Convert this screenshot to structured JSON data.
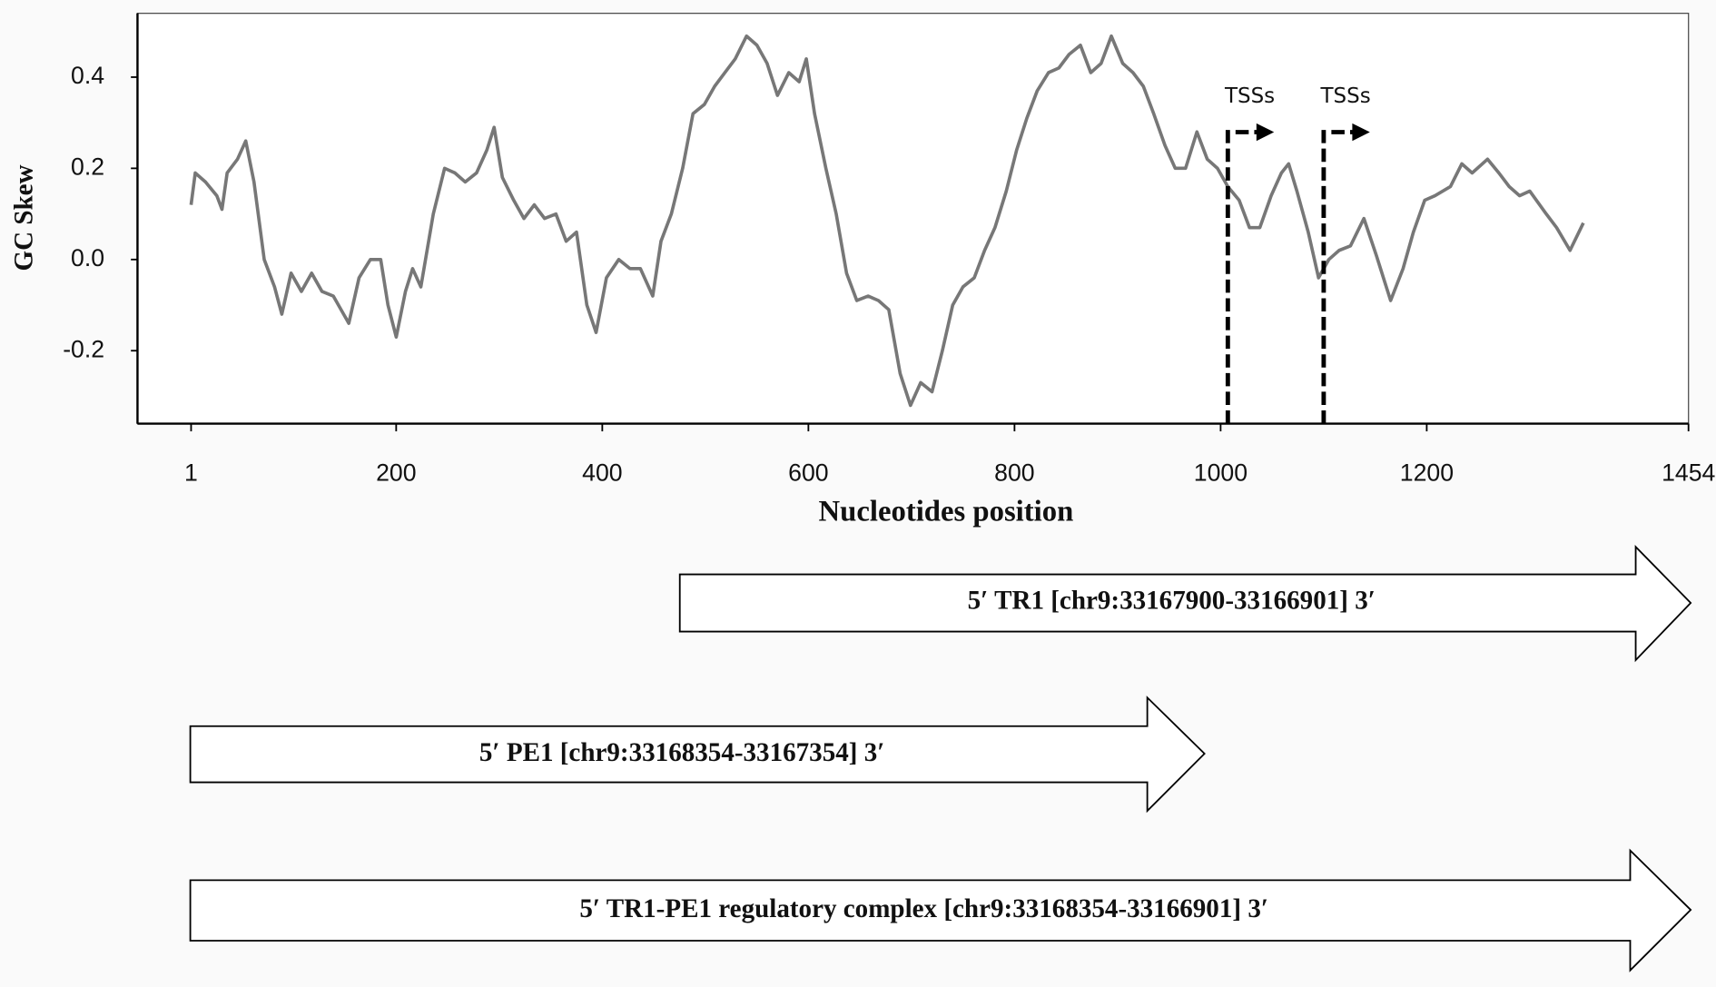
{
  "chart_data": {
    "type": "line",
    "xlabel": "Nucleotides position",
    "ylabel": "GC Skew",
    "xlim": [
      -51,
      1454
    ],
    "xticks": [
      1,
      200,
      400,
      600,
      800,
      1000,
      1200,
      1454
    ],
    "ylim": [
      -0.36,
      0.54
    ],
    "yticks": [
      0.4,
      0.2,
      {
        "value": 0,
        "label": "0.0"
      },
      -0.2
    ],
    "grid": false,
    "series": [
      {
        "color": "#777777",
        "x": [
          1,
          5,
          15,
          26,
          31,
          36,
          46,
          54,
          62,
          72,
          82,
          89,
          98,
          108,
          118,
          128,
          139,
          154,
          164,
          175,
          185,
          192,
          200,
          209,
          216,
          224,
          236,
          247,
          257,
          267,
          278,
          288,
          295,
          303,
          314,
          324,
          334,
          344,
          355,
          365,
          375,
          385,
          394,
          404,
          416,
          427,
          437,
          449,
          457,
          467,
          478,
          488,
          499,
          509,
          519,
          529,
          540,
          550,
          560,
          570,
          581,
          591,
          598,
          606,
          617,
          627,
          637,
          647,
          658,
          668,
          678,
          689,
          699,
          709,
          720,
          730,
          740,
          750,
          761,
          771,
          781,
          792,
          802,
          812,
          822,
          833,
          843,
          853,
          864,
          874,
          884,
          894,
          905,
          915,
          925,
          935,
          946,
          956,
          966,
          977,
          987,
          997,
          1007,
          1018,
          1028,
          1038,
          1049,
          1059,
          1066,
          1074,
          1085,
          1095,
          1105,
          1115,
          1126,
          1139,
          1151,
          1165,
          1177,
          1187,
          1198,
          1208,
          1223,
          1234,
          1244,
          1259,
          1270,
          1280,
          1290,
          1300,
          1316,
          1326,
          1339,
          1352
        ],
        "values": [
          0.12,
          0.19,
          0.17,
          0.14,
          0.11,
          0.19,
          0.22,
          0.26,
          0.17,
          0.0,
          -0.06,
          -0.12,
          -0.03,
          -0.07,
          -0.03,
          -0.07,
          -0.08,
          -0.14,
          -0.04,
          0.0,
          0.0,
          -0.1,
          -0.17,
          -0.07,
          -0.02,
          -0.06,
          0.1,
          0.2,
          0.19,
          0.17,
          0.19,
          0.24,
          0.29,
          0.18,
          0.13,
          0.09,
          0.12,
          0.09,
          0.1,
          0.04,
          0.06,
          -0.1,
          -0.16,
          -0.04,
          0.0,
          -0.02,
          -0.02,
          -0.08,
          0.04,
          0.1,
          0.2,
          0.32,
          0.34,
          0.38,
          0.41,
          0.44,
          0.49,
          0.47,
          0.43,
          0.36,
          0.41,
          0.39,
          0.44,
          0.32,
          0.2,
          0.1,
          -0.03,
          -0.09,
          -0.08,
          -0.09,
          -0.11,
          -0.25,
          -0.32,
          -0.27,
          -0.29,
          -0.2,
          -0.1,
          -0.06,
          -0.04,
          0.02,
          0.07,
          0.15,
          0.24,
          0.31,
          0.37,
          0.41,
          0.42,
          0.45,
          0.47,
          0.41,
          0.43,
          0.49,
          0.43,
          0.41,
          0.38,
          0.32,
          0.25,
          0.2,
          0.2,
          0.28,
          0.22,
          0.2,
          0.16,
          0.13,
          0.07,
          0.07,
          0.14,
          0.19,
          0.21,
          0.15,
          0.06,
          -0.04,
          0.0,
          0.02,
          0.03,
          0.09,
          0.01,
          -0.09,
          -0.02,
          0.06,
          0.13,
          0.14,
          0.16,
          0.21,
          0.19,
          0.22,
          0.19,
          0.16,
          0.14,
          0.15,
          0.1,
          0.07,
          0.02,
          0.08
        ]
      }
    ],
    "annotations": [
      {
        "text": "TSSs",
        "x": 1007
      },
      {
        "text": "TSSs",
        "x": 1100
      }
    ]
  },
  "regions": [
    {
      "label": "5′  TR1 [chr9:33167900-33166901] 3′"
    },
    {
      "label": "5′  PE1 [chr9:33168354-33167354]  3′"
    },
    {
      "label": "5′  TR1-PE1 regulatory complex [chr9:33168354-33166901]  3′"
    }
  ]
}
